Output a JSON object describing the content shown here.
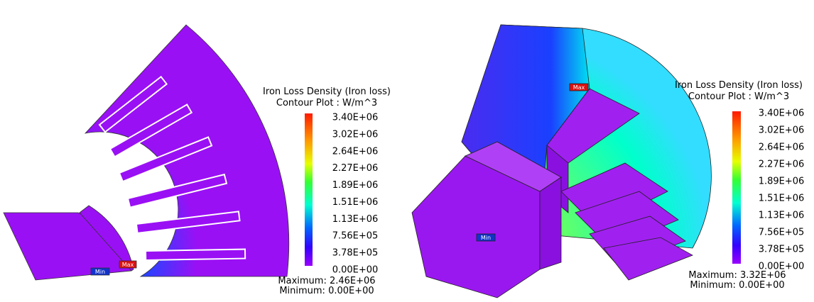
{
  "panels": [
    {
      "legend": {
        "title": [
          "Iron Loss Density (Iron loss)",
          "Contour Plot : W/m^3"
        ],
        "ticks": [
          "3.40E+06",
          "3.02E+06",
          "2.64E+06",
          "2.27E+06",
          "1.89E+06",
          "1.51E+06",
          "1.13E+06",
          "7.56E+05",
          "3.78E+05",
          "0.00E+00"
        ],
        "maximum": "Maximum: 2.46E+06",
        "minimum": "Minimum: 0.00E+00"
      },
      "markers": {
        "max": "Max",
        "min": "Min"
      }
    },
    {
      "legend": {
        "title": [
          "Iron Loss Density (Iron loss)",
          "Contour Plot : W/m^3"
        ],
        "ticks": [
          "3.40E+06",
          "3.02E+06",
          "2.64E+06",
          "2.27E+06",
          "1.89E+06",
          "1.51E+06",
          "1.13E+06",
          "7.56E+05",
          "3.78E+05",
          "0.00E+00"
        ],
        "maximum": "Maximum: 3.32E+06",
        "minimum": "Minimum: 0.00E+00"
      },
      "markers": {
        "max": "Max",
        "min": "Min"
      }
    }
  ]
}
